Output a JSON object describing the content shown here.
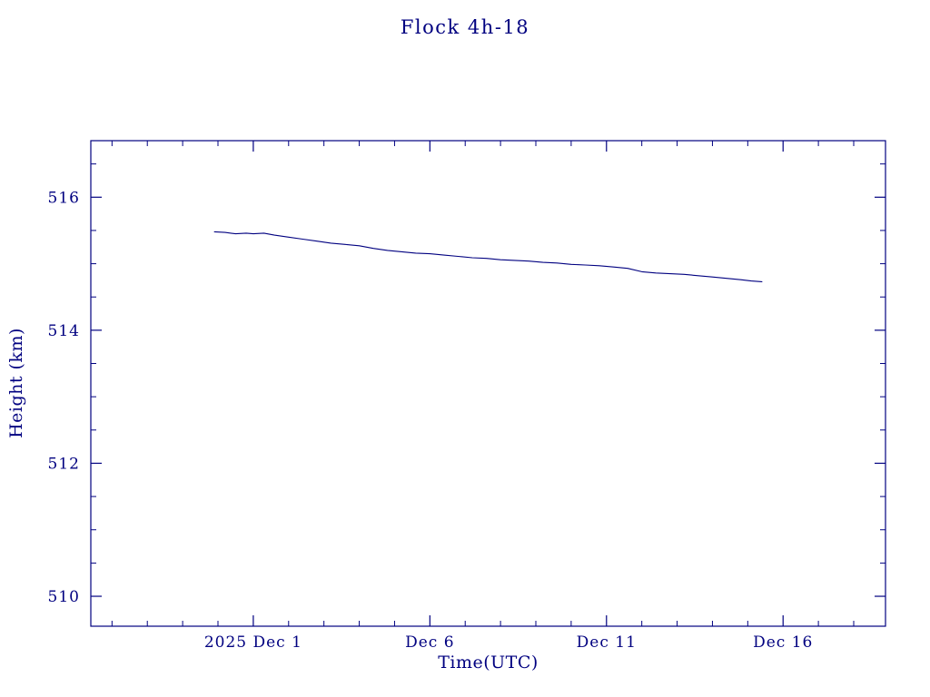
{
  "chart_data": {
    "type": "line",
    "title": "Flock 4h-18",
    "xlabel": "Time(UTC)",
    "ylabel": "Height (km)",
    "x_unit": "days relative to 2025 Dec 1 (UTC)",
    "xlim": [
      -4.6,
      17.9
    ],
    "ylim": [
      509.55,
      516.85
    ],
    "grid": false,
    "legend": null,
    "x_major_ticks": [
      {
        "value": 0,
        "label": "2025 Dec 1"
      },
      {
        "value": 5,
        "label": "Dec 6"
      },
      {
        "value": 10,
        "label": "Dec 11"
      },
      {
        "value": 15,
        "label": "Dec 16"
      }
    ],
    "x_minor_step": 1,
    "y_major_ticks": [
      {
        "value": 510,
        "label": "510"
      },
      {
        "value": 512,
        "label": "512"
      },
      {
        "value": 514,
        "label": "514"
      },
      {
        "value": 516,
        "label": "516"
      }
    ],
    "y_minor_step": 0.5,
    "colors": {
      "axis": "#000080",
      "line": "#000080",
      "text": "#000080",
      "background": "#ffffff"
    },
    "series": [
      {
        "name": "height",
        "x": [
          -1.1,
          -0.8,
          -0.5,
          -0.2,
          0.0,
          0.3,
          0.6,
          1.0,
          1.4,
          1.8,
          2.2,
          2.6,
          3.0,
          3.4,
          3.8,
          4.2,
          4.6,
          5.0,
          5.4,
          5.8,
          6.2,
          6.6,
          7.0,
          7.4,
          7.8,
          8.2,
          8.6,
          9.0,
          9.4,
          9.8,
          10.2,
          10.6,
          11.0,
          11.4,
          11.8,
          12.2,
          12.6,
          13.0,
          13.4,
          13.8,
          14.1,
          14.4
        ],
        "y": [
          515.48,
          515.47,
          515.45,
          515.46,
          515.45,
          515.46,
          515.43,
          515.4,
          515.37,
          515.34,
          515.31,
          515.29,
          515.27,
          515.23,
          515.2,
          515.18,
          515.16,
          515.15,
          515.13,
          515.11,
          515.09,
          515.08,
          515.06,
          515.05,
          515.04,
          515.02,
          515.01,
          514.99,
          514.98,
          514.97,
          514.95,
          514.93,
          514.88,
          514.86,
          514.85,
          514.84,
          514.82,
          514.8,
          514.78,
          514.76,
          514.74,
          514.73
        ]
      }
    ]
  }
}
